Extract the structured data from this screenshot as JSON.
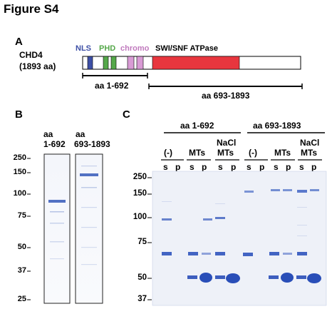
{
  "figure": {
    "title": "Figure S4"
  },
  "panel_a": {
    "letter": "A",
    "protein_name": "CHD4",
    "protein_length": "(1893 aa)",
    "domains": [
      {
        "label": "NLS",
        "color": "#3d4fa6"
      },
      {
        "label": "PHD",
        "color": "#55a84a"
      },
      {
        "label": "chromo",
        "color": "#c079bd"
      },
      {
        "label": "SWI/SNF ATPase",
        "color": "#e8363e"
      }
    ],
    "fragments": [
      {
        "label": "aa 1-692"
      },
      {
        "label": "aa 693-1893"
      }
    ]
  },
  "panel_b": {
    "letter": "B",
    "lanes": [
      {
        "line1": "aa",
        "line2": "1-692"
      },
      {
        "line1": "aa",
        "line2": "693-1893"
      }
    ],
    "markers": [
      "250",
      "150",
      "100",
      "75",
      "50",
      "37",
      "25"
    ]
  },
  "panel_c": {
    "letter": "C",
    "groups": [
      {
        "label": "aa 1-692"
      },
      {
        "label": "aa 693-1893"
      }
    ],
    "conditions": [
      "(-)",
      "MTs",
      "NaCl",
      "MTs",
      "(-)",
      "MTs",
      "NaCl",
      "MTs"
    ],
    "lane_labels": [
      "s",
      "p",
      "s",
      "p",
      "s",
      "p",
      "s",
      "p",
      "s",
      "p",
      "s",
      "p"
    ],
    "markers": [
      "250",
      "150",
      "100",
      "75",
      "50",
      "37"
    ]
  }
}
